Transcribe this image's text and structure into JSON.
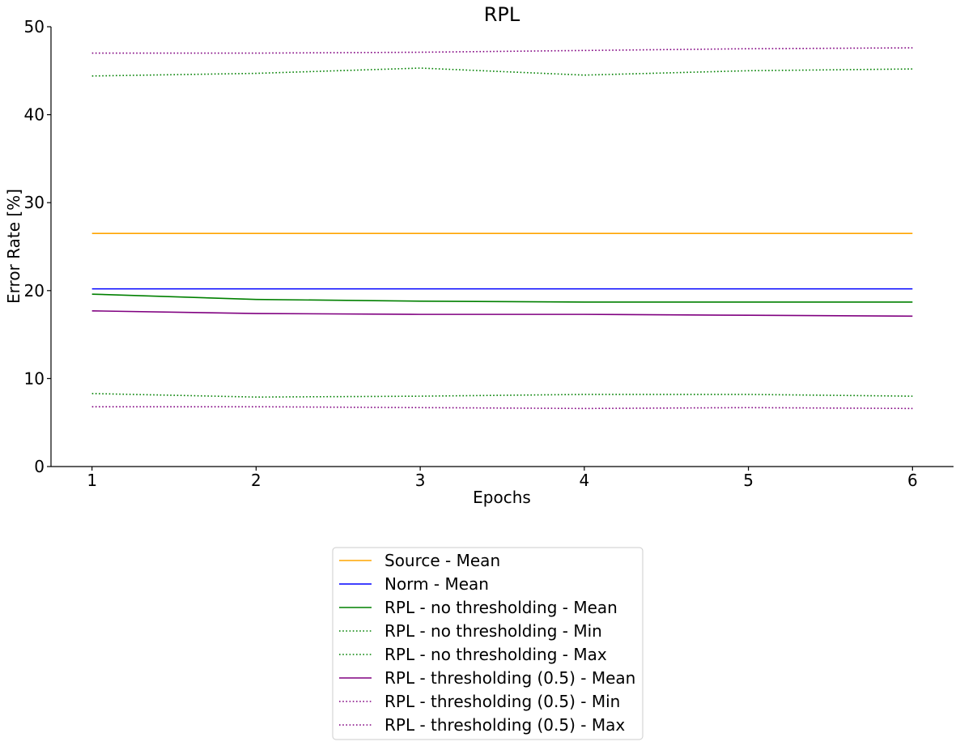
{
  "chart_data": {
    "type": "line",
    "title": "RPL",
    "xlabel": "Epochs",
    "ylabel": "Error Rate [%]",
    "x": [
      1,
      2,
      3,
      4,
      5,
      6
    ],
    "xlim": [
      0.75,
      6.25
    ],
    "ylim": [
      0,
      50
    ],
    "xticks": [
      "1",
      "2",
      "3",
      "4",
      "5",
      "6"
    ],
    "yticks": [
      "0",
      "10",
      "20",
      "30",
      "40",
      "50"
    ],
    "grid": false,
    "legend_position": "bottom-center",
    "series": [
      {
        "name": "Source - Mean",
        "color": "#FFA500",
        "style": "solid",
        "values": [
          26.5,
          26.5,
          26.5,
          26.5,
          26.5,
          26.5
        ]
      },
      {
        "name": "Norm - Mean",
        "color": "#0000FF",
        "style": "solid",
        "values": [
          20.2,
          20.2,
          20.2,
          20.2,
          20.2,
          20.2
        ]
      },
      {
        "name": "RPL - no thresholding - Mean",
        "color": "#008000",
        "style": "solid",
        "values": [
          19.6,
          19.0,
          18.8,
          18.7,
          18.7,
          18.7
        ]
      },
      {
        "name": "RPL - no thresholding - Min",
        "color": "#008000",
        "style": "dotted",
        "values": [
          8.3,
          7.9,
          8.0,
          8.2,
          8.2,
          8.0
        ]
      },
      {
        "name": "RPL - no thresholding - Max",
        "color": "#008000",
        "style": "dotted",
        "values": [
          44.4,
          44.7,
          45.3,
          44.5,
          45.0,
          45.2
        ]
      },
      {
        "name": "RPL - thresholding (0.5) - Mean",
        "color": "#800080",
        "style": "solid",
        "values": [
          17.7,
          17.4,
          17.3,
          17.3,
          17.2,
          17.1
        ]
      },
      {
        "name": "RPL - thresholding (0.5) - Min",
        "color": "#800080",
        "style": "dotted",
        "values": [
          6.8,
          6.8,
          6.7,
          6.6,
          6.7,
          6.6
        ]
      },
      {
        "name": "RPL - thresholding (0.5) - Max",
        "color": "#800080",
        "style": "dotted",
        "values": [
          47.0,
          47.0,
          47.1,
          47.3,
          47.5,
          47.6
        ]
      }
    ]
  }
}
